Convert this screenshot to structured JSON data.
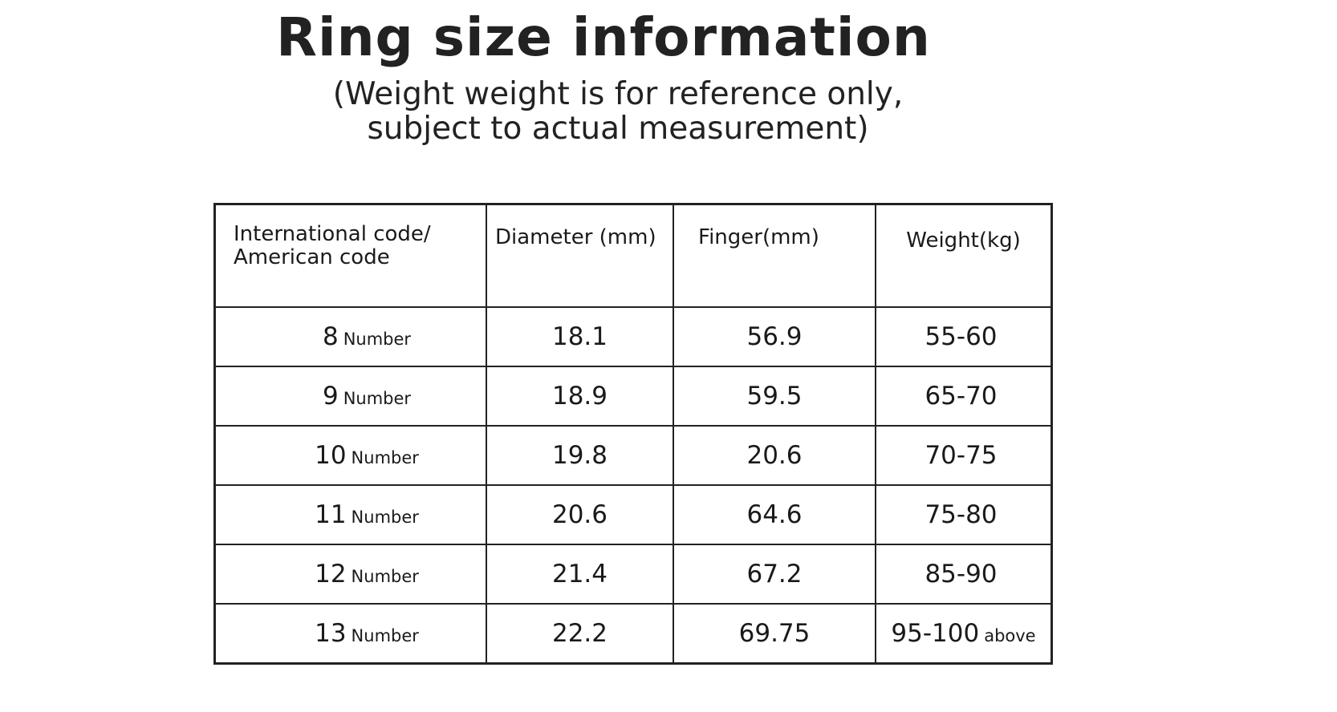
{
  "title": "Ring size information",
  "subtitle": [
    "(Weight weight is for reference only,",
    "subject to actual measurement)"
  ],
  "table": {
    "headers": [
      "International code/ American code",
      "Diameter (mm)",
      "Finger(mm)",
      "Weight(kg)"
    ],
    "header_lines": [
      "International code/",
      "American code"
    ],
    "rows": [
      {
        "code": "8",
        "unit": "Number",
        "diameter": "18.1",
        "finger": "56.9",
        "weight": "55-60",
        "weight_suffix": ""
      },
      {
        "code": "9",
        "unit": "Number",
        "diameter": "18.9",
        "finger": "59.5",
        "weight": "65-70",
        "weight_suffix": ""
      },
      {
        "code": "10",
        "unit": "Number",
        "diameter": "19.8",
        "finger": "20.6",
        "weight": "70-75",
        "weight_suffix": ""
      },
      {
        "code": "11",
        "unit": "Number",
        "diameter": "20.6",
        "finger": "64.6",
        "weight": "75-80",
        "weight_suffix": ""
      },
      {
        "code": "12",
        "unit": "Number",
        "diameter": "21.4",
        "finger": "67.2",
        "weight": "85-90",
        "weight_suffix": ""
      },
      {
        "code": "13",
        "unit": "Number",
        "diameter": "22.2",
        "finger": "69.75",
        "weight": "95-100",
        "weight_suffix": "above"
      }
    ]
  }
}
